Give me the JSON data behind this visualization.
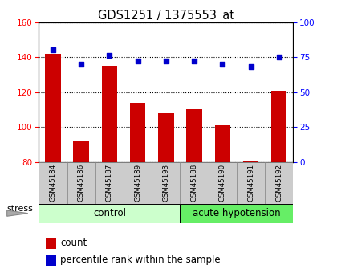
{
  "title": "GDS1251 / 1375553_at",
  "samples": [
    "GSM45184",
    "GSM45186",
    "GSM45187",
    "GSM45189",
    "GSM45193",
    "GSM45188",
    "GSM45190",
    "GSM45191",
    "GSM45192"
  ],
  "count_values": [
    142,
    92,
    135,
    114,
    108,
    110,
    101,
    81,
    121
  ],
  "percentile_values": [
    80,
    70,
    76,
    72,
    72,
    72,
    70,
    68,
    75
  ],
  "bar_color": "#cc0000",
  "dot_color": "#0000cc",
  "ylim_left": [
    80,
    160
  ],
  "ylim_right": [
    0,
    100
  ],
  "yticks_left": [
    80,
    100,
    120,
    140,
    160
  ],
  "yticks_right": [
    0,
    25,
    50,
    75,
    100
  ],
  "group_labels": [
    "control",
    "acute hypotension"
  ],
  "group_ranges": [
    5,
    4
  ],
  "group_colors_light": "#ccffcc",
  "group_colors_dark": "#66ee66",
  "stress_label": "stress",
  "legend_items": [
    "count",
    "percentile rank within the sample"
  ],
  "bar_width": 0.55
}
